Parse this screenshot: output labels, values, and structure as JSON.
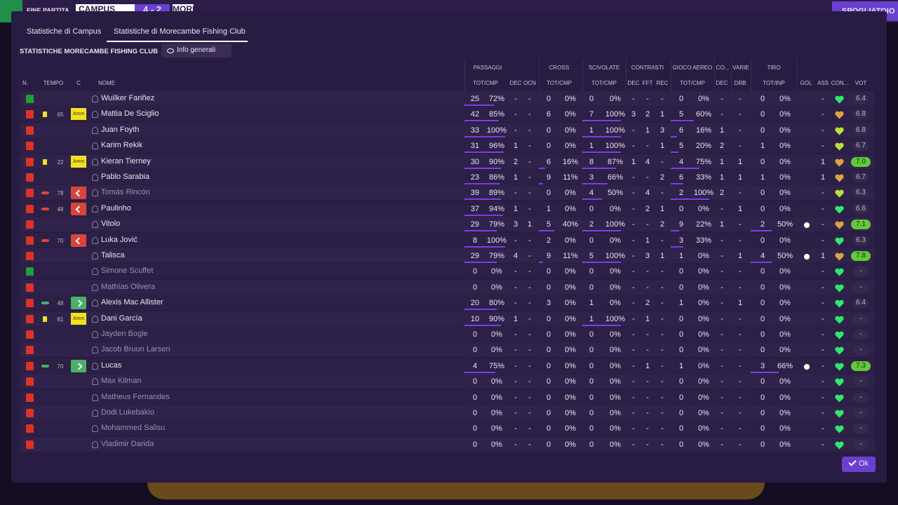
{
  "topbar": {
    "status": "FINE PARTITA",
    "home": "CAMPUS",
    "score": "4 - 2",
    "away": "MORECA",
    "right_button": "SPOGLIATOIO"
  },
  "tabs": [
    "Statistiche di Campus",
    "Statistiche di Morecambe Fishing Club"
  ],
  "section_title": "STATISTICHE MORECAMBE FISHING CLUB",
  "dropdown": "Info generali",
  "group_headers": [
    "PASSAGGI",
    "CROSS",
    "SCIVOLATE",
    "CONTRASTI",
    "GIOCO AEREO",
    "CO...",
    "VARIE",
    "TIRO"
  ],
  "column_headers": [
    "N.",
    "TEMPO",
    "C",
    "NOME",
    "TOT/CMP",
    "DEC",
    "OCN",
    "TOT/CMP",
    "TOT/CMP",
    "DEC",
    "FFT",
    "REC",
    "TOT/CMP",
    "DEC",
    "DRB",
    "TOT/INP",
    "GOL",
    "ASS",
    "CON...",
    "VOT"
  ],
  "rows": [
    {
      "name": "Wuilker Fariñez",
      "kit": "#1f9d3a",
      "pass": [
        "25",
        "72%",
        "-",
        "-"
      ],
      "cross": [
        "0",
        "0%"
      ],
      "sciv": [
        "0",
        "0%"
      ],
      "contr": [
        "-",
        "-",
        "-"
      ],
      "aereo": [
        "0",
        "0%"
      ],
      "co": "-",
      "drb": "-",
      "tiro": [
        "0",
        "0%"
      ],
      "ass": "-",
      "heart": "#2ee86f",
      "vot": "6.4"
    },
    {
      "name": "Mattia De Sciglio",
      "kit": "#e0302a",
      "event": "yellow",
      "minute": "65",
      "card": "Amm",
      "pass": [
        "42",
        "85%",
        "-",
        "-"
      ],
      "cross": [
        "6",
        "0%"
      ],
      "sciv": [
        "7",
        "100%"
      ],
      "contr": [
        "3",
        "2",
        "1"
      ],
      "aereo": [
        "5",
        "60%"
      ],
      "co": "-",
      "drb": "-",
      "tiro": [
        "0",
        "0%"
      ],
      "ass": "-",
      "heart": "#d9a441",
      "vot": "6.8"
    },
    {
      "name": "Juan Foyth",
      "kit": "#e0302a",
      "pass": [
        "33",
        "100%",
        "-",
        "-"
      ],
      "cross": [
        "0",
        "0%"
      ],
      "sciv": [
        "1",
        "100%"
      ],
      "contr": [
        "-",
        "1",
        "3"
      ],
      "aereo": [
        "6",
        "16%"
      ],
      "co": "1",
      "drb": "-",
      "tiro": [
        "0",
        "0%"
      ],
      "ass": "-",
      "heart": "#b8e03a",
      "vot": "6.8"
    },
    {
      "name": "Karim Rekik",
      "kit": "#e0302a",
      "pass": [
        "31",
        "96%",
        "1",
        "-"
      ],
      "cross": [
        "0",
        "0%"
      ],
      "sciv": [
        "1",
        "100%"
      ],
      "contr": [
        "-",
        "-",
        "1"
      ],
      "aereo": [
        "5",
        "20%"
      ],
      "co": "2",
      "drb": "-",
      "tiro": [
        "1",
        "0%"
      ],
      "ass": "-",
      "heart": "#b8e03a",
      "vot": "6.7"
    },
    {
      "name": "Kieran Tierney",
      "kit": "#e0302a",
      "event": "yellow",
      "minute": "22",
      "card": "Amm",
      "pass": [
        "30",
        "90%",
        "2",
        "-"
      ],
      "cross": [
        "6",
        "16%"
      ],
      "sciv": [
        "8",
        "87%"
      ],
      "contr": [
        "1",
        "4",
        "-"
      ],
      "aereo": [
        "4",
        "75%"
      ],
      "co": "1",
      "drb": "1",
      "tiro": [
        "0",
        "0%"
      ],
      "ass": "1",
      "heart": "#d9a441",
      "vot": "7.0",
      "highlight": true
    },
    {
      "name": "Pablo Sarabia",
      "kit": "#e0302a",
      "pass": [
        "23",
        "86%",
        "1",
        "-"
      ],
      "cross": [
        "9",
        "11%"
      ],
      "sciv": [
        "3",
        "66%"
      ],
      "contr": [
        "-",
        "-",
        "2"
      ],
      "aereo": [
        "6",
        "33%"
      ],
      "co": "1",
      "drb": "1",
      "tiro": [
        "1",
        "0%"
      ],
      "ass": "1",
      "heart": "#d9a441",
      "vot": "6.7"
    },
    {
      "name": "Tomás Rincón",
      "kit": "#e0302a",
      "dim": true,
      "event": "sub",
      "minute": "78",
      "sub": "out",
      "pass": [
        "39",
        "89%",
        "-",
        "-"
      ],
      "cross": [
        "0",
        "0%"
      ],
      "sciv": [
        "4",
        "50%"
      ],
      "contr": [
        "-",
        "4",
        "-"
      ],
      "aereo": [
        "2",
        "100%"
      ],
      "co": "2",
      "drb": "-",
      "tiro": [
        "0",
        "0%"
      ],
      "ass": "-",
      "heart": "#b8e03a",
      "vot": "6.3"
    },
    {
      "name": "Paulinho",
      "kit": "#e0302a",
      "event": "sub",
      "minute": "48",
      "sub": "out",
      "pass": [
        "37",
        "94%",
        "1",
        "-"
      ],
      "cross": [
        "1",
        "0%"
      ],
      "sciv": [
        "0",
        "0%"
      ],
      "contr": [
        "-",
        "2",
        "1"
      ],
      "aereo": [
        "0",
        "0%"
      ],
      "co": "-",
      "drb": "1",
      "tiro": [
        "0",
        "0%"
      ],
      "ass": "-",
      "heart": "#2ee86f",
      "vot": "6.6"
    },
    {
      "name": "Vitolo",
      "kit": "#e0302a",
      "pass": [
        "29",
        "79%",
        "3",
        "1"
      ],
      "cross": [
        "5",
        "40%"
      ],
      "sciv": [
        "2",
        "100%"
      ],
      "contr": [
        "-",
        "-",
        "2"
      ],
      "aereo": [
        "9",
        "22%"
      ],
      "co": "1",
      "drb": "-",
      "tiro": [
        "2",
        "50%"
      ],
      "goal": true,
      "ass": "-",
      "heart": "#d9a441",
      "vot": "7.1",
      "highlight": true
    },
    {
      "name": "Luka Jović",
      "kit": "#e0302a",
      "event": "sub",
      "minute": "70",
      "sub": "out",
      "pass": [
        "8",
        "100%",
        "-",
        "-"
      ],
      "cross": [
        "2",
        "0%"
      ],
      "sciv": [
        "0",
        "0%"
      ],
      "contr": [
        "-",
        "1",
        "-"
      ],
      "aereo": [
        "3",
        "33%"
      ],
      "co": "-",
      "drb": "-",
      "tiro": [
        "0",
        "0%"
      ],
      "ass": "-",
      "heart": "#2ee86f",
      "vot": "6.3"
    },
    {
      "name": "Talisca",
      "kit": "#e0302a",
      "pass": [
        "29",
        "79%",
        "4",
        "-"
      ],
      "cross": [
        "9",
        "11%"
      ],
      "sciv": [
        "5",
        "100%"
      ],
      "contr": [
        "-",
        "3",
        "1"
      ],
      "aereo": [
        "1",
        "0%"
      ],
      "co": "-",
      "drb": "1",
      "tiro": [
        "4",
        "50%"
      ],
      "goal": true,
      "ass": "1",
      "heart": "#d9a441",
      "vot": "7.8",
      "highlight": true
    },
    {
      "name": "Simone Scuffet",
      "kit": "#1f9d3a",
      "dim": true,
      "pass": [
        "0",
        "0%",
        "-",
        "-"
      ],
      "cross": [
        "0",
        "0%"
      ],
      "sciv": [
        "0",
        "0%"
      ],
      "contr": [
        "-",
        "-",
        "-"
      ],
      "aereo": [
        "0",
        "0%"
      ],
      "co": "-",
      "drb": "-",
      "tiro": [
        "0",
        "0%"
      ],
      "ass": "-",
      "heart": "#2ee86f",
      "vot": "-"
    },
    {
      "name": "Mathías Olivera",
      "kit": "#e0302a",
      "dim": true,
      "pass": [
        "0",
        "0%",
        "-",
        "-"
      ],
      "cross": [
        "0",
        "0%"
      ],
      "sciv": [
        "0",
        "0%"
      ],
      "contr": [
        "-",
        "-",
        "-"
      ],
      "aereo": [
        "0",
        "0%"
      ],
      "co": "-",
      "drb": "-",
      "tiro": [
        "0",
        "0%"
      ],
      "ass": "-",
      "heart": "#2ee86f",
      "vot": "-"
    },
    {
      "name": "Alexis Mac Allister",
      "kit": "#e0302a",
      "event": "sub",
      "minute": "48",
      "sub": "in",
      "pass": [
        "20",
        "80%",
        "-",
        "-"
      ],
      "cross": [
        "3",
        "0%"
      ],
      "sciv": [
        "1",
        "0%"
      ],
      "contr": [
        "-",
        "2",
        "-"
      ],
      "aereo": [
        "1",
        "0%"
      ],
      "co": "-",
      "drb": "1",
      "tiro": [
        "0",
        "0%"
      ],
      "ass": "-",
      "heart": "#2ee86f",
      "vot": "6.4"
    },
    {
      "name": "Dani García",
      "kit": "#e0302a",
      "event": "yellow",
      "minute": "81",
      "card": "Amm",
      "pass": [
        "10",
        "90%",
        "1",
        "-"
      ],
      "cross": [
        "0",
        "0%"
      ],
      "sciv": [
        "1",
        "100%"
      ],
      "contr": [
        "-",
        "1",
        "-"
      ],
      "aereo": [
        "0",
        "0%"
      ],
      "co": "-",
      "drb": "-",
      "tiro": [
        "0",
        "0%"
      ],
      "ass": "-",
      "heart": "#2ee86f",
      "vot": "-"
    },
    {
      "name": "Jayden Bogle",
      "kit": "#e0302a",
      "dim": true,
      "pass": [
        "0",
        "0%",
        "-",
        "-"
      ],
      "cross": [
        "0",
        "0%"
      ],
      "sciv": [
        "0",
        "0%"
      ],
      "contr": [
        "-",
        "-",
        "-"
      ],
      "aereo": [
        "0",
        "0%"
      ],
      "co": "-",
      "drb": "-",
      "tiro": [
        "0",
        "0%"
      ],
      "ass": "-",
      "heart": "#2ee86f",
      "vot": "-"
    },
    {
      "name": "Jacob Bruun Larsen",
      "kit": "#e0302a",
      "dim": true,
      "pass": [
        "0",
        "0%",
        "-",
        "-"
      ],
      "cross": [
        "0",
        "0%"
      ],
      "sciv": [
        "0",
        "0%"
      ],
      "contr": [
        "-",
        "-",
        "-"
      ],
      "aereo": [
        "0",
        "0%"
      ],
      "co": "-",
      "drb": "-",
      "tiro": [
        "0",
        "0%"
      ],
      "ass": "-",
      "heart": "#2ee86f",
      "vot": "-"
    },
    {
      "name": "Lucas",
      "kit": "#e0302a",
      "event": "sub",
      "minute": "70",
      "sub": "in",
      "pass": [
        "4",
        "75%",
        "-",
        "-"
      ],
      "cross": [
        "0",
        "0%"
      ],
      "sciv": [
        "0",
        "0%"
      ],
      "contr": [
        "-",
        "1",
        "-"
      ],
      "aereo": [
        "1",
        "0%"
      ],
      "co": "-",
      "drb": "-",
      "tiro": [
        "3",
        "66%"
      ],
      "goal": true,
      "ass": "-",
      "heart": "#2ee86f",
      "vot": "7.3",
      "highlight": true
    },
    {
      "name": "Max Kilman",
      "kit": "#e0302a",
      "dim": true,
      "pass": [
        "0",
        "0%",
        "-",
        "-"
      ],
      "cross": [
        "0",
        "0%"
      ],
      "sciv": [
        "0",
        "0%"
      ],
      "contr": [
        "-",
        "-",
        "-"
      ],
      "aereo": [
        "0",
        "0%"
      ],
      "co": "-",
      "drb": "-",
      "tiro": [
        "0",
        "0%"
      ],
      "ass": "-",
      "heart": "#2ee86f",
      "vot": "-"
    },
    {
      "name": "Matheus Fernandes",
      "kit": "#e0302a",
      "dim": true,
      "pass": [
        "0",
        "0%",
        "-",
        "-"
      ],
      "cross": [
        "0",
        "0%"
      ],
      "sciv": [
        "0",
        "0%"
      ],
      "contr": [
        "-",
        "-",
        "-"
      ],
      "aereo": [
        "0",
        "0%"
      ],
      "co": "-",
      "drb": "-",
      "tiro": [
        "0",
        "0%"
      ],
      "ass": "-",
      "heart": "#2ee86f",
      "vot": "-"
    },
    {
      "name": "Dodi Lukebakio",
      "kit": "#e0302a",
      "dim": true,
      "pass": [
        "0",
        "0%",
        "-",
        "-"
      ],
      "cross": [
        "0",
        "0%"
      ],
      "sciv": [
        "0",
        "0%"
      ],
      "contr": [
        "-",
        "-",
        "-"
      ],
      "aereo": [
        "0",
        "0%"
      ],
      "co": "-",
      "drb": "-",
      "tiro": [
        "0",
        "0%"
      ],
      "ass": "-",
      "heart": "#2ee86f",
      "vot": "-"
    },
    {
      "name": "Mohammed Salisu",
      "kit": "#e0302a",
      "dim": true,
      "pass": [
        "0",
        "0%",
        "-",
        "-"
      ],
      "cross": [
        "0",
        "0%"
      ],
      "sciv": [
        "0",
        "0%"
      ],
      "contr": [
        "-",
        "-",
        "-"
      ],
      "aereo": [
        "0",
        "0%"
      ],
      "co": "-",
      "drb": "-",
      "tiro": [
        "0",
        "0%"
      ],
      "ass": "-",
      "heart": "#2ee86f",
      "vot": "-"
    },
    {
      "name": "Vladimir Darida",
      "kit": "#e0302a",
      "dim": true,
      "pass": [
        "0",
        "0%",
        "-",
        "-"
      ],
      "cross": [
        "0",
        "0%"
      ],
      "sciv": [
        "0",
        "0%"
      ],
      "contr": [
        "-",
        "-",
        "-"
      ],
      "aereo": [
        "0",
        "0%"
      ],
      "co": "-",
      "drb": "-",
      "tiro": [
        "0",
        "0%"
      ],
      "ass": "-",
      "heart": "#2ee86f",
      "vot": "-"
    }
  ],
  "ok_button": "Ok"
}
